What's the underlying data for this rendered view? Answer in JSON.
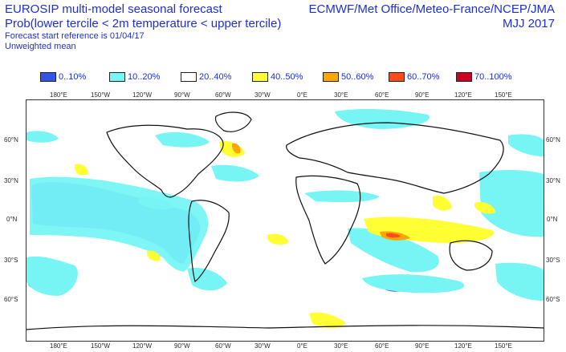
{
  "header": {
    "title_line1": "EUROSIP multi-model seasonal forecast",
    "title_line2": "Prob(lower tercile < 2m temperature < upper tercile)",
    "forecast_ref": "Forecast start reference is 01/04/17",
    "mean_type": "Unweighted mean",
    "centres": "ECMWF/Met Office/Meteo-France/NCEP/JMA",
    "season": "MJJ 2017"
  },
  "legend": [
    {
      "label": "0..10%",
      "color": "#3355e8"
    },
    {
      "label": "10..20%",
      "color": "#77f5f5"
    },
    {
      "label": "20..40%",
      "color": "#ffffff"
    },
    {
      "label": "40..50%",
      "color": "#ffff33"
    },
    {
      "label": "50..60%",
      "color": "#ffa500"
    },
    {
      "label": "60..70%",
      "color": "#ff4a1a"
    },
    {
      "label": "70..100%",
      "color": "#cc0022"
    }
  ],
  "axes": {
    "lon_labels": [
      "180°E",
      "150°W",
      "120°W",
      "90°W",
      "60°W",
      "30°W",
      "0°E",
      "30°E",
      "60°E",
      "90°E",
      "120°E",
      "150°E"
    ],
    "lat_labels": [
      "60°N",
      "30°N",
      "0°N",
      "30°S",
      "60°S"
    ]
  }
}
